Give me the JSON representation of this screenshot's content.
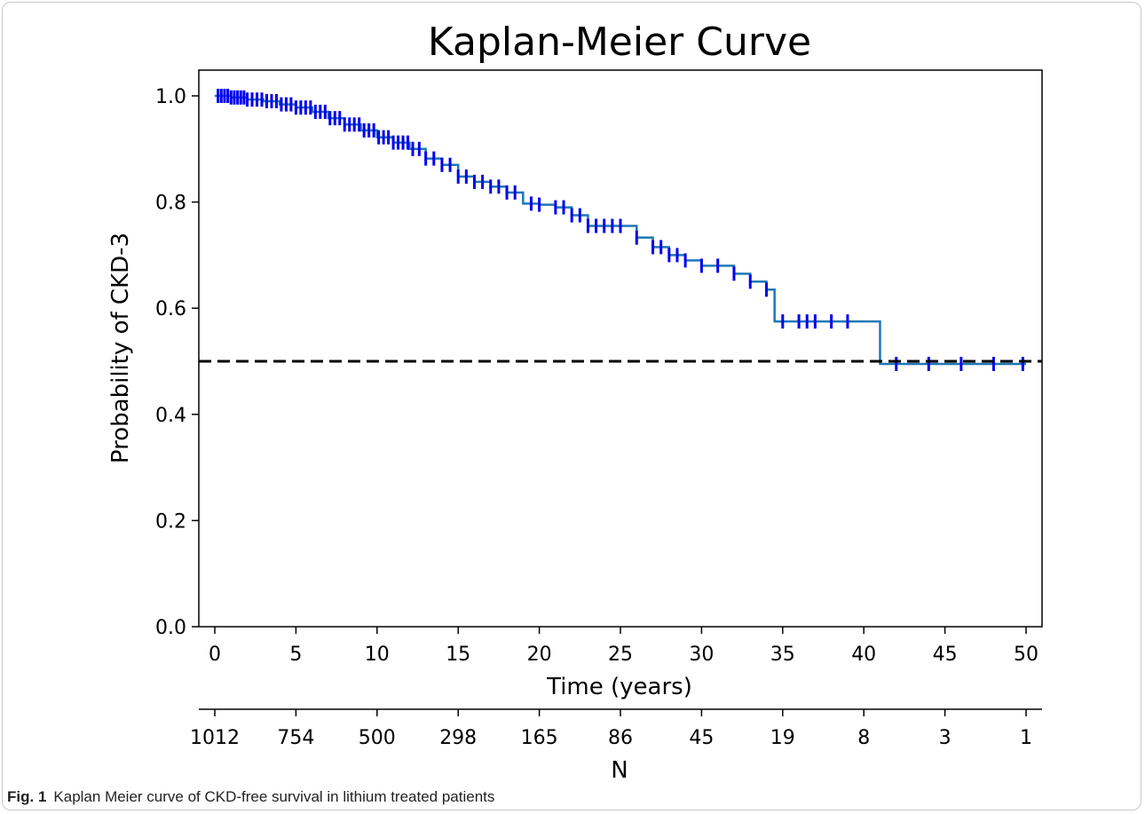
{
  "figure": {
    "label": "Fig. 1",
    "caption": "Kaplan Meier curve of CKD-free survival in lithium treated patients"
  },
  "chart_data": {
    "type": "line",
    "title": "Kaplan-Meier Curve",
    "xlabel": "Time (years)",
    "ylabel": "Probability of CKD-3",
    "xlim": [
      -1,
      51
    ],
    "ylim": [
      0.0,
      1.0
    ],
    "x_ticks": [
      0,
      5,
      10,
      15,
      20,
      25,
      30,
      35,
      40,
      45,
      50
    ],
    "y_ticks": [
      0.0,
      0.2,
      0.4,
      0.6,
      0.8,
      1.0
    ],
    "y_tick_labels": [
      "0.0",
      "0.2",
      "0.4",
      "0.6",
      "0.8",
      "1.0"
    ],
    "grid": false,
    "reference_line": {
      "y": 0.5,
      "style": "dashed",
      "color": "#000000"
    },
    "line_color": "#1f77b4",
    "censor_color": "#0000ee",
    "series": [
      {
        "x": [
          0,
          1,
          2,
          3,
          4,
          5,
          6,
          7,
          8,
          9,
          10,
          11,
          12,
          13,
          14,
          15,
          16,
          17,
          18,
          19,
          20,
          21,
          22,
          23,
          24,
          25,
          26,
          27,
          28,
          29,
          30,
          31,
          32,
          33,
          34,
          34.5,
          35,
          40.9,
          41,
          50
        ],
        "y": [
          1.0,
          0.997,
          0.993,
          0.99,
          0.984,
          0.978,
          0.97,
          0.958,
          0.946,
          0.935,
          0.922,
          0.912,
          0.9,
          0.882,
          0.87,
          0.848,
          0.838,
          0.829,
          0.818,
          0.797,
          0.795,
          0.79,
          0.775,
          0.755,
          0.755,
          0.755,
          0.733,
          0.715,
          0.7,
          0.69,
          0.68,
          0.68,
          0.665,
          0.65,
          0.635,
          0.575,
          0.575,
          0.575,
          0.495,
          0.495
        ]
      }
    ],
    "censor_x": [
      0.2,
      0.4,
      0.6,
      0.8,
      1.0,
      1.2,
      1.4,
      1.6,
      1.8,
      2.0,
      2.3,
      2.6,
      2.9,
      3.2,
      3.5,
      3.8,
      4.1,
      4.4,
      4.7,
      5.0,
      5.3,
      5.6,
      5.9,
      6.2,
      6.5,
      6.8,
      7.1,
      7.4,
      7.7,
      8.0,
      8.3,
      8.6,
      8.9,
      9.2,
      9.5,
      9.8,
      10.1,
      10.4,
      10.7,
      11.0,
      11.3,
      11.6,
      11.9,
      12.2,
      12.6,
      13.0,
      13.5,
      14.0,
      14.5,
      15.0,
      15.5,
      16.0,
      16.5,
      17.0,
      17.5,
      18.0,
      18.5,
      19.5,
      20.0,
      21.0,
      21.5,
      22.0,
      22.5,
      23.0,
      23.5,
      24.0,
      24.5,
      25.0,
      26.0,
      27.0,
      27.5,
      28.0,
      28.5,
      29.0,
      30.0,
      31.0,
      32.0,
      33.0,
      34.0,
      35.0,
      36.0,
      36.5,
      37.0,
      38.0,
      39.0,
      42.0,
      44.0,
      46.0,
      48.0,
      49.8
    ],
    "at_risk": {
      "label": "N",
      "ticks": [
        0,
        5,
        10,
        15,
        20,
        25,
        30,
        35,
        40,
        45,
        50
      ],
      "counts": [
        "1012",
        "754",
        "500",
        "298",
        "165",
        "86",
        "45",
        "19",
        "8",
        "3",
        "1"
      ]
    }
  }
}
